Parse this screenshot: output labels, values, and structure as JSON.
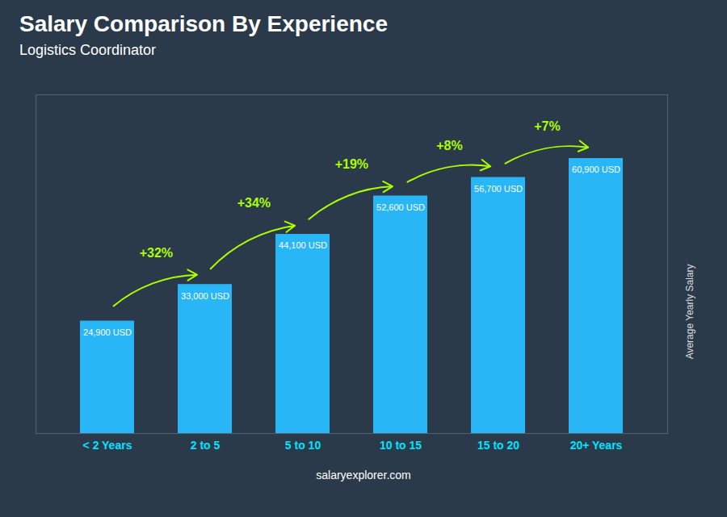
{
  "chart_data": {
    "type": "bar",
    "title": "Salary Comparison By Experience",
    "subtitle": "Logistics Coordinator",
    "ylabel": "Average Yearly Salary",
    "caption": "salaryexplorer.com",
    "categories": [
      "< 2 Years",
      "2 to 5",
      "5 to 10",
      "10 to 15",
      "15 to 20",
      "20+ Years"
    ],
    "values": [
      24900,
      33000,
      44100,
      52600,
      56700,
      60900
    ],
    "value_labels": [
      "24,900 USD",
      "33,000 USD",
      "44,100 USD",
      "52,600 USD",
      "56,700 USD",
      "60,900 USD"
    ],
    "data_labels": true,
    "annotations": [
      {
        "text": "+32%",
        "from": "< 2 Years",
        "to": "2 to 5"
      },
      {
        "text": "+34%",
        "from": "2 to 5",
        "to": "5 to 10"
      },
      {
        "text": "+19%",
        "from": "5 to 10",
        "to": "10 to 15"
      },
      {
        "text": "+8%",
        "from": "10 to 15",
        "to": "15 to 20"
      },
      {
        "text": "+7%",
        "from": "15 to 20",
        "to": "20+ Years"
      }
    ],
    "color": "#29b6f6",
    "ylim": [
      0,
      75000
    ],
    "tick_labels": "x",
    "grid": false
  }
}
